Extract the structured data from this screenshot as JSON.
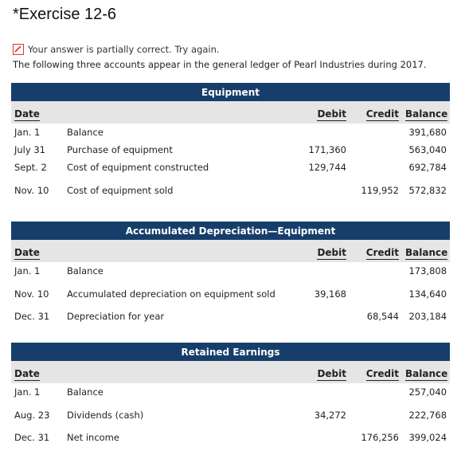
{
  "header": {
    "title": "*Exercise 12-6",
    "status_text": "Your answer is partially correct.  Try again.",
    "intro_text": "The following three accounts appear in the general ledger of Pearl Industries during 2017."
  },
  "columns": {
    "date": "Date",
    "debit": "Debit",
    "credit": "Credit",
    "balance": "Balance"
  },
  "status_icon": {
    "name": "partially-correct-pencil-icon",
    "color": "#d9362b"
  },
  "colors": {
    "ledger_header": "#173e6b",
    "column_header": "#e5e5e5"
  },
  "ledgers": [
    {
      "title": "Equipment",
      "rows": [
        {
          "date": "Jan. 1",
          "desc": "Balance",
          "debit": "",
          "credit": "",
          "balance": "391,680"
        },
        {
          "date": "July 31",
          "desc": "Purchase of equipment",
          "debit": "171,360",
          "credit": "",
          "balance": "563,040"
        },
        {
          "date": "Sept. 2",
          "desc": "Cost of equipment constructed",
          "debit": "129,744",
          "credit": "",
          "balance": "692,784"
        },
        {
          "date": "Nov. 10",
          "desc": "Cost of equipment sold",
          "debit": "",
          "credit": "119,952",
          "balance": "572,832"
        }
      ]
    },
    {
      "title": "Accumulated Depreciation—Equipment",
      "rows": [
        {
          "date": "Jan. 1",
          "desc": "Balance",
          "debit": "",
          "credit": "",
          "balance": "173,808"
        },
        {
          "date": "Nov. 10",
          "desc": "Accumulated depreciation on equipment sold",
          "debit": "39,168",
          "credit": "",
          "balance": "134,640"
        },
        {
          "date": "Dec. 31",
          "desc": "Depreciation for year",
          "debit": "",
          "credit": "68,544",
          "balance": "203,184"
        }
      ]
    },
    {
      "title": "Retained Earnings",
      "rows": [
        {
          "date": "Jan. 1",
          "desc": "Balance",
          "debit": "",
          "credit": "",
          "balance": "257,040"
        },
        {
          "date": "Aug. 23",
          "desc": "Dividends (cash)",
          "debit": "34,272",
          "credit": "",
          "balance": "222,768"
        },
        {
          "date": "Dec. 31",
          "desc": "Net income",
          "debit": "",
          "credit": "176,256",
          "balance": "399,024"
        }
      ]
    }
  ]
}
